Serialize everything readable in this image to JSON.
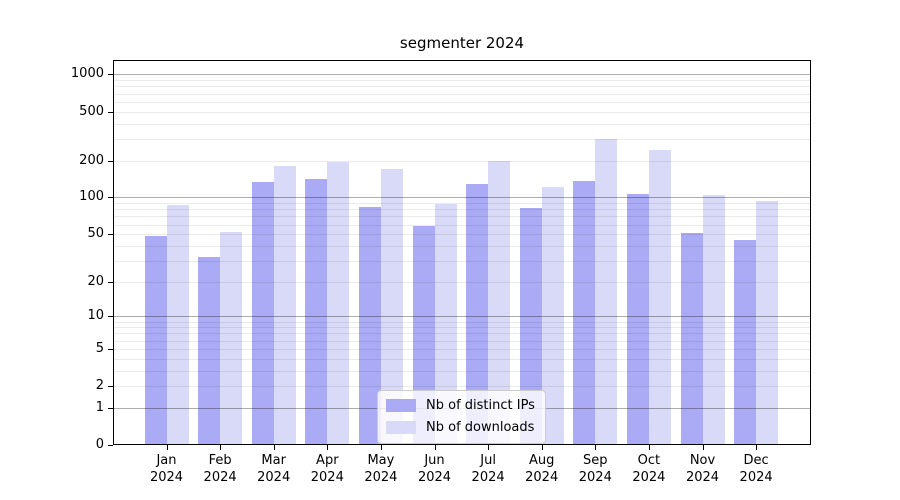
{
  "chart_data": {
    "type": "bar",
    "title": "segmenter 2024",
    "categories": [
      "Jan",
      "Feb",
      "Mar",
      "Apr",
      "May",
      "Jun",
      "Jul",
      "Aug",
      "Sep",
      "Oct",
      "Nov",
      "Dec"
    ],
    "year_label": "2024",
    "series": [
      {
        "name": "Nb of distinct IPs",
        "color": "#aaaaf5",
        "values": [
          48,
          32,
          135,
          142,
          83,
          58,
          130,
          82,
          136,
          106,
          51,
          45
        ]
      },
      {
        "name": "Nb of downloads",
        "color": "#d9d9f8",
        "values": [
          87,
          52,
          181,
          196,
          170,
          89,
          200,
          122,
          299,
          245,
          104,
          94
        ]
      }
    ],
    "xlabel": "",
    "ylabel": "",
    "yscale": "log1p",
    "ylim": [
      0,
      1310
    ],
    "ytick_labels": [
      0,
      1,
      2,
      5,
      10,
      20,
      50,
      100,
      200,
      500,
      1000
    ],
    "grid": true,
    "grid_major": [
      1,
      10,
      100,
      1000
    ],
    "legend_position": "lower center"
  }
}
